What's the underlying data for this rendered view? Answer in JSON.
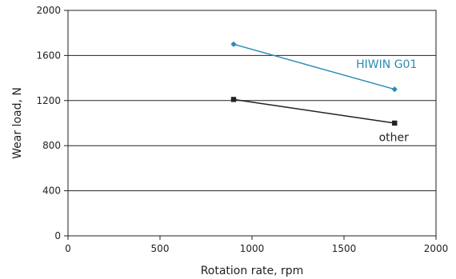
{
  "chart_data": {
    "type": "line",
    "xlabel": "Rotation rate, rpm",
    "ylabel": "Wear load, N",
    "xlim": [
      0,
      2000
    ],
    "ylim": [
      0,
      2000
    ],
    "x_ticks": [
      0,
      500,
      1000,
      1500,
      2000
    ],
    "y_ticks": [
      0,
      400,
      800,
      1200,
      1600,
      2000
    ],
    "grid": "horizontal",
    "series": [
      {
        "name": "HIWIN G01",
        "color": "#2a8bb3",
        "marker": "diamond",
        "x": [
          900,
          1775
        ],
        "y": [
          1700,
          1300
        ]
      },
      {
        "name": "other",
        "color": "#222222",
        "marker": "square",
        "x": [
          900,
          1775
        ],
        "y": [
          1210,
          1000
        ]
      }
    ]
  }
}
